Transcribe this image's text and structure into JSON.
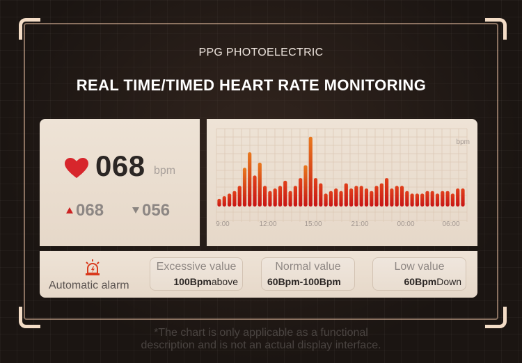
{
  "header": {
    "subtitle": "PPG PHOTOELECTRIC",
    "title": "REAL TIME/TIMED HEART RATE MONITORING"
  },
  "current": {
    "icon": "heart-icon",
    "value": "068",
    "unit": "bpm",
    "high_value": "068",
    "low_value": "056"
  },
  "chart_data": {
    "type": "bar",
    "ylabel": "bpm",
    "xticks": [
      "9:00",
      "12:00",
      "15:00",
      "21:00",
      "00:00",
      "06:00"
    ],
    "values": [
      3,
      4,
      5,
      6,
      8,
      15,
      21,
      12,
      17,
      8,
      6,
      7,
      8,
      10,
      6,
      8,
      11,
      16,
      27,
      11,
      9,
      5,
      6,
      7,
      6,
      9,
      7,
      8,
      8,
      7,
      6,
      8,
      9,
      11,
      7,
      8,
      8,
      6,
      5,
      5,
      5,
      6,
      6,
      5,
      6,
      6,
      5,
      7,
      7
    ],
    "ylim": [
      0,
      28
    ],
    "colors": {
      "bar_top": "#e0401b",
      "bar_bottom": "#c81414",
      "peak": "#e8781e"
    }
  },
  "alarm": {
    "icon": "alarm-icon",
    "label": "Automatic alarm",
    "excessive": {
      "title": "Excessive value",
      "value_bold": "100Bpm",
      "value_rest": "above"
    },
    "normal": {
      "title": "Normal value",
      "value_bold": "60Bpm-100Bpm",
      "value_rest": ""
    },
    "low": {
      "title": "Low value",
      "value_bold": "60Bpm",
      "value_rest": "Down"
    }
  },
  "footer": {
    "line1": "*The chart is only applicable as a functional",
    "line2": "description and is not an actual display interface."
  }
}
